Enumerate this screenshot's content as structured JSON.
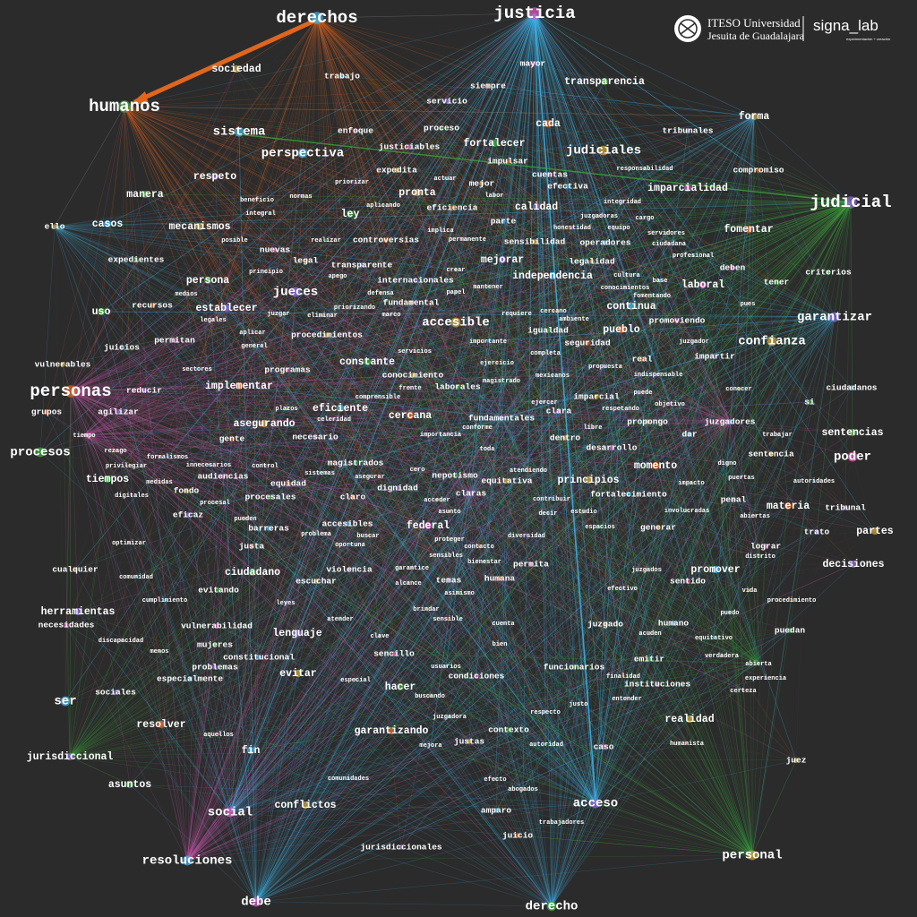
{
  "logo": {
    "institution_line1": "ITESO Universidad",
    "institution_line2": "Jesuita de Guadalajara",
    "lab": "signa_lab",
    "lab_tagline": "experimentación + creación"
  },
  "nodes": [
    "derechos",
    "justicia",
    "humanos",
    "personas",
    "judicial",
    "sociedad",
    "trabajo",
    "mayor",
    "transparencia",
    "siempre",
    "servicio",
    "forma",
    "sistema",
    "enfoque",
    "proceso",
    "cada",
    "tribunales",
    "judiciales",
    "perspectiva",
    "justiciables",
    "fortalecer",
    "impulsar",
    "respeto",
    "expedita",
    "actuar",
    "cuentas",
    "responsabilidad",
    "compromiso",
    "priorizar",
    "mejor",
    "efectiva",
    "imparcialidad",
    "manera",
    "beneficio",
    "normas",
    "pronta",
    "labor",
    "integridad",
    "aplicando",
    "eficiencia",
    "calidad",
    "ello",
    "casos",
    "integral",
    "ley",
    "juzgadoras",
    "cargo",
    "mecanismos",
    "parte",
    "honestidad",
    "equipo",
    "fomentar",
    "implica",
    "servidores",
    "posible",
    "nuevas",
    "realizar",
    "controversias",
    "permanente",
    "sensibilidad",
    "operadores",
    "ciudadana",
    "expedientes",
    "legal",
    "mejorar",
    "legalidad",
    "profesional",
    "deben",
    "criterios",
    "principio",
    "transparente",
    "crear",
    "independencia",
    "cultura",
    "persona",
    "apego",
    "internacionales",
    "mantener",
    "base",
    "laboral",
    "tener",
    "medios",
    "jueces",
    "defensa",
    "papel",
    "conocimientos",
    "fomentando",
    "recursos",
    "establecer",
    "fundamental",
    "continua",
    "pues",
    "uso",
    "legales",
    "juzgar",
    "eliminar",
    "priorizando",
    "marco",
    "requiere",
    "cercano",
    "garantizar",
    "accesible",
    "ambiente",
    "promoviendo",
    "igualdad",
    "pueblo",
    "aplicar",
    "procedimientos",
    "importante",
    "permitan",
    "general",
    "seguridad",
    "juzgador",
    "confianza",
    "juicios",
    "servicios",
    "completa",
    "real",
    "impartir",
    "vulnerables",
    "sectores",
    "programas",
    "constante",
    "ejercicio",
    "propuesta",
    "conocimiento",
    "mexicanos",
    "indispensable",
    "magistrado",
    "implementar",
    "reducir",
    "conocer",
    "ciudadanos",
    "frente",
    "laborales",
    "puede",
    "comprensible",
    "imparcial",
    "ejercer",
    "objetivo",
    "si",
    "grupos",
    "agilizar",
    "plazos",
    "eficiente",
    "clara",
    "respetando",
    "cercana",
    "fundamentales",
    "propongo",
    "juzgadores",
    "celeridad",
    "conforme",
    "libre",
    "tiempo",
    "asegurando",
    "importancia",
    "trabajar",
    "sentencias",
    "gente",
    "necesario",
    "dentro",
    "dar",
    "desarrollo",
    "procesos",
    "rezago",
    "toda",
    "sentencia",
    "formalismos",
    "poder",
    "magistrados",
    "momento",
    "digno",
    "privilegiar",
    "innecesarios",
    "control",
    "nepotismo",
    "atendiendo",
    "cero",
    "principios",
    "sistemas",
    "audiencias",
    "tiempos",
    "medidas",
    "asegurar",
    "equitativa",
    "autoridades",
    "puertas",
    "impacto",
    "equidad",
    "dignidad",
    "fondo",
    "fortalecimiento",
    "digitales",
    "procesales",
    "claro",
    "claras",
    "acceder",
    "contribuir",
    "penal",
    "procesal",
    "materia",
    "tribunal",
    "asunto",
    "decir",
    "estudio",
    "involucradas",
    "abiertas",
    "eficaz",
    "pueden",
    "accesibles",
    "federal",
    "espacios",
    "generar",
    "trato",
    "partes",
    "barreras",
    "optimizar",
    "problema",
    "buscar",
    "diversidad",
    "proteger",
    "oportuna",
    "lograr",
    "distrito",
    "justa",
    "decisiones",
    "contacto",
    "sensibles",
    "permita",
    "bienestar",
    "cualquier",
    "violencia",
    "garantice",
    "comunidad",
    "juzgados",
    "ciudadano",
    "humana",
    "temas",
    "escuchar",
    "promover",
    "sentido",
    "evitando",
    "alcance",
    "efectivo",
    "vida",
    "cumplimiento",
    "leyes",
    "asimismo",
    "procedimiento",
    "herramientas",
    "brindar",
    "puedo",
    "necesidades",
    "atender",
    "sensible",
    "cuenta",
    "juzgado",
    "humano",
    "vulnerabilidad",
    "puedan",
    "acuden",
    "lenguaje",
    "clave",
    "equitativo",
    "discapacidad",
    "mujeres",
    "bien",
    "abierta",
    "menos",
    "constitucional",
    "sencillo",
    "emitir",
    "verdadera",
    "problemas",
    "especial",
    "usuarios",
    "condiciones",
    "funcionarios",
    "finalidad",
    "experiencia",
    "evitar",
    "especialmente",
    "instituciones",
    "hacer",
    "certeza",
    "sociales",
    "buscando",
    "ser",
    "entender",
    "justo",
    "resolver",
    "respecto",
    "realidad",
    "juzgadora",
    "aquellos",
    "contexto",
    "garantizando",
    "mejora",
    "justas",
    "fin",
    "caso",
    "autoridad",
    "humanista",
    "jurisdiccional",
    "juez",
    "comunidades",
    "efecto",
    "asuntos",
    "abogados",
    "acceso",
    "conflictos",
    "amparo",
    "social",
    "trabajadores",
    "juicio",
    "jurisdiccionales",
    "personal",
    "resoluciones",
    "debe",
    "derecho"
  ]
}
